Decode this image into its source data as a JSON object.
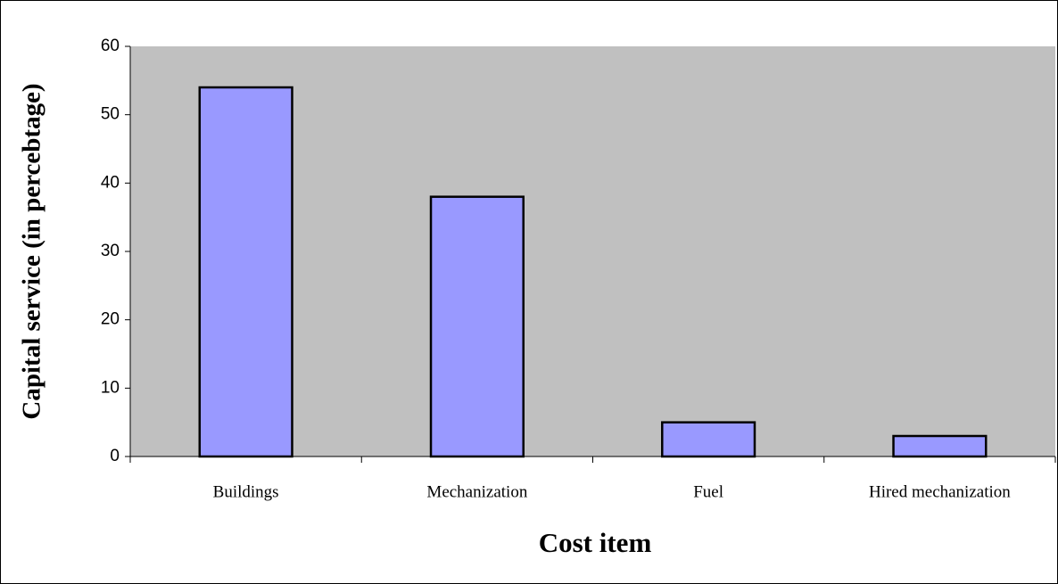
{
  "chart_data": {
    "type": "bar",
    "categories": [
      "Buildings",
      "Mechanization",
      "Fuel",
      "Hired mechanization"
    ],
    "values": [
      54,
      38,
      5,
      3
    ],
    "color": "#9999ff",
    "ylim": [
      0,
      60
    ],
    "yticks": [
      0,
      10,
      20,
      30,
      40,
      50,
      60
    ],
    "xlabel": "Cost item",
    "ylabel": "Capital service (in percebtage)",
    "background": "#c0c0c0"
  }
}
